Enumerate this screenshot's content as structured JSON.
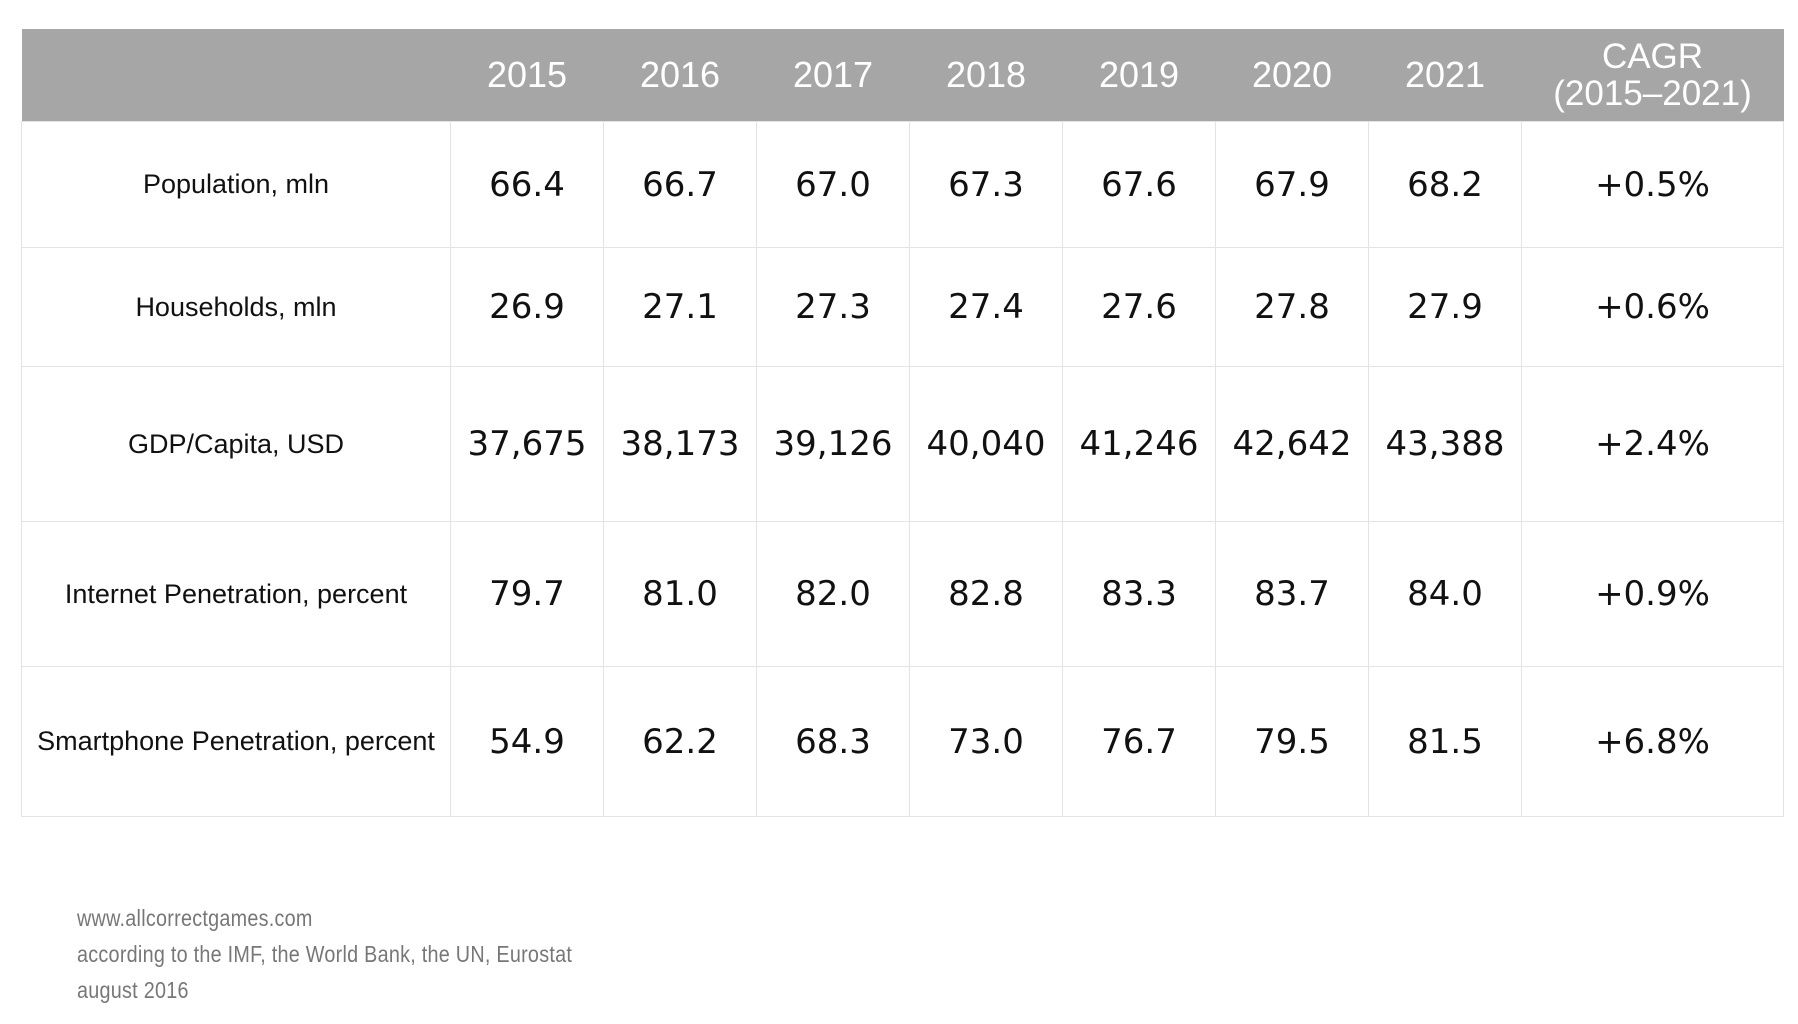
{
  "chart_data": {
    "type": "table",
    "columns": [
      "2015",
      "2016",
      "2017",
      "2018",
      "2019",
      "2020",
      "2021"
    ],
    "cagr_header": [
      "CAGR",
      "(2015–2021)"
    ],
    "rows": [
      {
        "label": "Population, mln",
        "values": [
          "66.4",
          "66.7",
          "67.0",
          "67.3",
          "67.6",
          "67.9",
          "68.2"
        ],
        "cagr": "+0.5%"
      },
      {
        "label": "Households, mln",
        "values": [
          "26.9",
          "27.1",
          "27.3",
          "27.4",
          "27.6",
          "27.8",
          "27.9"
        ],
        "cagr": "+0.6%"
      },
      {
        "label": "GDP/Capita, USD",
        "values": [
          "37,675",
          "38,173",
          "39,126",
          "40,040",
          "41,246",
          "42,642",
          "43,388"
        ],
        "cagr": "+2.4%"
      },
      {
        "label": "Internet Penetration, percent",
        "values": [
          "79.7",
          "81.0",
          "82.0",
          "82.8",
          "83.3",
          "83.7",
          "84.0"
        ],
        "cagr": "+0.9%"
      },
      {
        "label": "Smartphone Penetration, percent",
        "values": [
          "54.9",
          "62.2",
          "68.3",
          "73.0",
          "76.7",
          "79.5",
          "81.5"
        ],
        "cagr": "+6.8%"
      }
    ],
    "header_color": "#a6a6a6"
  },
  "footer": {
    "website": "www.allcorrectgames.com",
    "source": "according to the IMF, the World Bank, the UN, Eurostat",
    "date": "august 2016"
  }
}
